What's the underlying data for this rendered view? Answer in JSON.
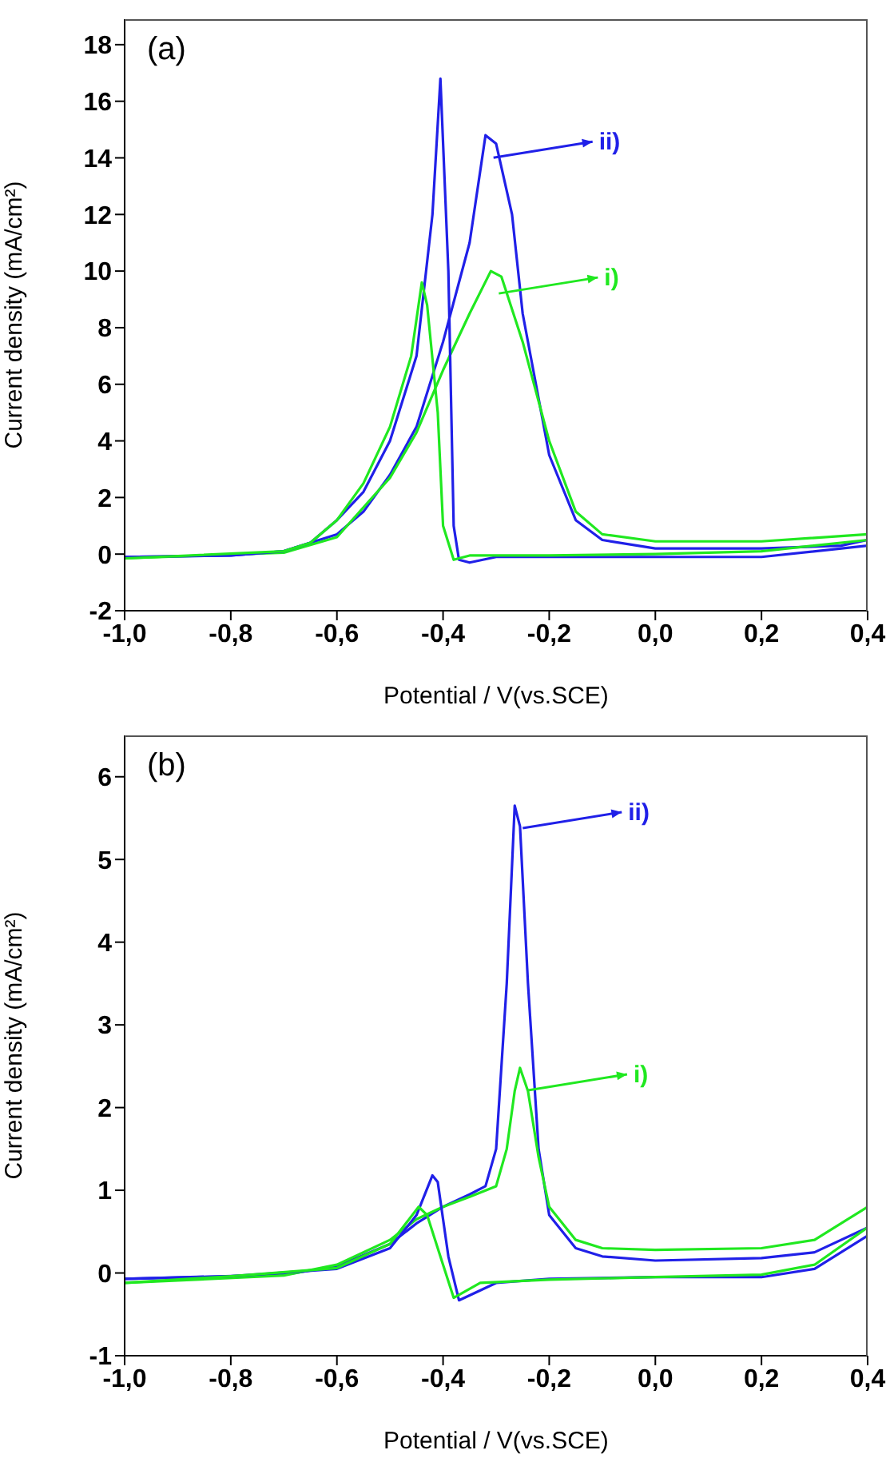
{
  "chart_data": [
    {
      "type": "line",
      "title": "(a)",
      "xlabel": "Potential / V(vs.SCE)",
      "ylabel": "Current density (mA/cm²)",
      "xlim": [
        -1,
        0.4
      ],
      "xticks": [
        {
          "value": -1,
          "label": "-1,0"
        },
        {
          "value": -0.8,
          "label": "-0,8"
        },
        {
          "value": -0.6,
          "label": "-0,6"
        },
        {
          "value": -0.4,
          "label": "-0,4"
        },
        {
          "value": -0.2,
          "label": "-0,2"
        },
        {
          "value": 0,
          "label": "0,0"
        },
        {
          "value": 0.2,
          "label": "0,2"
        },
        {
          "value": 0.4,
          "label": "0,4"
        }
      ],
      "ylim": [
        -2,
        18.9
      ],
      "yticks": [
        -2,
        0,
        2,
        4,
        6,
        8,
        10,
        12,
        14,
        16,
        18
      ],
      "legend": "top right",
      "marker": "none",
      "line_style": "solid",
      "series": [
        {
          "name": "ii)",
          "color": "#2020e8",
          "x": [
            -1,
            -0.8,
            -0.7,
            -0.6,
            -0.55,
            -0.5,
            -0.45,
            -0.4,
            -0.35,
            -0.32,
            -0.3,
            -0.27,
            -0.25,
            -0.2,
            -0.15,
            -0.1,
            0,
            0.2,
            0.35,
            0.4
          ],
          "values": [
            -0.1,
            -0.05,
            0.1,
            0.7,
            1.5,
            2.8,
            4.5,
            7.5,
            11,
            14.8,
            14.5,
            12,
            8.5,
            3.5,
            1.2,
            0.5,
            0.2,
            0.2,
            0.3,
            0.5
          ]
        },
        {
          "name": "i)",
          "color": "#20e820",
          "x": [
            -1,
            -0.7,
            -0.6,
            -0.5,
            -0.45,
            -0.4,
            -0.35,
            -0.31,
            -0.29,
            -0.25,
            -0.2,
            -0.15,
            -0.1,
            0,
            0.2,
            0.4
          ],
          "values": [
            -0.15,
            0.05,
            0.6,
            2.7,
            4.3,
            6.5,
            8.5,
            10,
            9.8,
            7.5,
            4,
            1.5,
            0.7,
            0.45,
            0.45,
            0.7
          ]
        },
        {
          "color": "#2020e8",
          "x": [
            -1,
            -0.8,
            -0.7,
            -0.65,
            -0.6,
            -0.55,
            -0.5,
            -0.45,
            -0.42,
            -0.405,
            -0.39,
            -0.38,
            -0.37,
            -0.35,
            -0.3,
            -0.2,
            0,
            0.2,
            0.4
          ],
          "values": [
            -0.1,
            -0.05,
            0.1,
            0.4,
            1.2,
            2.2,
            4,
            7,
            12,
            16.8,
            10,
            1,
            -0.2,
            -0.3,
            -0.1,
            -0.1,
            -0.1,
            -0.1,
            0.3
          ]
        },
        {
          "color": "#20e820",
          "x": [
            -1,
            -0.7,
            -0.65,
            -0.6,
            -0.55,
            -0.5,
            -0.46,
            -0.44,
            -0.43,
            -0.41,
            -0.4,
            -0.38,
            -0.35,
            -0.2,
            0,
            0.2,
            0.4
          ],
          "values": [
            -0.15,
            0.1,
            0.4,
            1.2,
            2.5,
            4.5,
            7,
            9.6,
            8.8,
            5,
            1,
            -0.2,
            -0.05,
            -0.05,
            0,
            0.1,
            0.5
          ]
        }
      ]
    },
    {
      "type": "line",
      "title": "(b)",
      "xlabel": "Potential / V(vs.SCE)",
      "ylabel": "Current density (mA/cm²)",
      "xlim": [
        -1,
        0.4
      ],
      "xticks": [
        {
          "value": -1,
          "label": "-1,0"
        },
        {
          "value": -0.8,
          "label": "-0,8"
        },
        {
          "value": -0.6,
          "label": "-0,6"
        },
        {
          "value": -0.4,
          "label": "-0,4"
        },
        {
          "value": -0.2,
          "label": "-0,2"
        },
        {
          "value": 0,
          "label": "0,0"
        },
        {
          "value": 0.2,
          "label": "0,2"
        },
        {
          "value": 0.4,
          "label": "0,4"
        }
      ],
      "ylim": [
        -1,
        6.5
      ],
      "yticks": [
        -1,
        0,
        1,
        2,
        3,
        4,
        5,
        6
      ],
      "legend": "top right",
      "marker": "none",
      "line_style": "solid",
      "series": [
        {
          "name": "ii)",
          "color": "#2020e8",
          "x": [
            -1,
            -0.7,
            -0.6,
            -0.5,
            -0.45,
            -0.4,
            -0.35,
            -0.32,
            -0.3,
            -0.28,
            -0.265,
            -0.255,
            -0.24,
            -0.22,
            -0.2,
            -0.15,
            -0.1,
            0,
            0.2,
            0.3,
            0.4
          ],
          "values": [
            -0.07,
            -0.02,
            0.08,
            0.35,
            0.6,
            0.8,
            0.95,
            1.05,
            1.5,
            3.5,
            5.65,
            5.4,
            3.5,
            1.5,
            0.7,
            0.3,
            0.2,
            0.15,
            0.18,
            0.25,
            0.55
          ]
        },
        {
          "name": "i)",
          "color": "#20e820",
          "x": [
            -1,
            -0.7,
            -0.6,
            -0.5,
            -0.45,
            -0.4,
            -0.35,
            -0.3,
            -0.28,
            -0.265,
            -0.255,
            -0.24,
            -0.22,
            -0.2,
            -0.15,
            -0.1,
            0,
            0.2,
            0.3,
            0.4
          ],
          "values": [
            -0.12,
            -0.03,
            0.1,
            0.4,
            0.65,
            0.8,
            0.92,
            1.05,
            1.5,
            2.2,
            2.48,
            2.2,
            1.4,
            0.8,
            0.4,
            0.3,
            0.28,
            0.3,
            0.4,
            0.8
          ]
        },
        {
          "color": "#2020e8",
          "x": [
            -1,
            -0.8,
            -0.6,
            -0.5,
            -0.45,
            -0.42,
            -0.41,
            -0.39,
            -0.37,
            -0.3,
            -0.2,
            0,
            0.2,
            0.3,
            0.4
          ],
          "values": [
            -0.07,
            -0.04,
            0.05,
            0.3,
            0.7,
            1.18,
            1.1,
            0.2,
            -0.33,
            -0.12,
            -0.07,
            -0.05,
            -0.05,
            0.05,
            0.45
          ]
        },
        {
          "color": "#20e820",
          "x": [
            -1,
            -0.8,
            -0.6,
            -0.5,
            -0.446,
            -0.43,
            -0.4,
            -0.38,
            -0.33,
            -0.2,
            0,
            0.2,
            0.3,
            0.4
          ],
          "values": [
            -0.12,
            -0.04,
            0.06,
            0.35,
            0.8,
            0.7,
            0.1,
            -0.3,
            -0.12,
            -0.08,
            -0.05,
            -0.02,
            0.1,
            0.55
          ]
        }
      ]
    }
  ]
}
